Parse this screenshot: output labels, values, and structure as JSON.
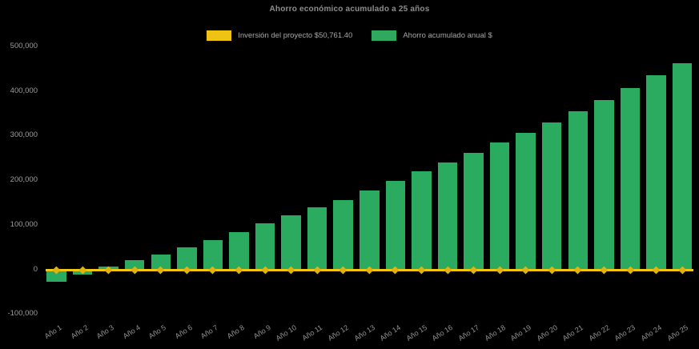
{
  "title": "Ahorro económico acumulado a 25 años",
  "colors": {
    "background": "#000000",
    "bar_green": "#2aab5f",
    "line_gold": "#f2c511",
    "marker_gold": "#e2b30e",
    "title_text": "#8d8d8d",
    "tick_text": "#9e9e9e",
    "legend_text": "#a6a6a6"
  },
  "legend": {
    "items": [
      {
        "label": "Inversión del proyecto $50,761.40",
        "color": "#eec313",
        "series": "investment-line"
      },
      {
        "label": "Ahorro acumulado anual $",
        "color": "#2fa95d",
        "series": "savings-bars"
      }
    ]
  },
  "chart_data": {
    "type": "bar",
    "title": "Ahorro económico acumulado a 25 años",
    "categories": [
      "Año 1",
      "Año 2",
      "Año 3",
      "Año 4",
      "Año 5",
      "Año 6",
      "Año 7",
      "Año 8",
      "Año 9",
      "Año 10",
      "Año 11",
      "Año 12",
      "Año 13",
      "Año 14",
      "Año 15",
      "Año 16",
      "Año 17",
      "Año 18",
      "Año 19",
      "Año 20",
      "Año 21",
      "Año 22",
      "Año 23",
      "Año 24",
      "Año 25"
    ],
    "series": [
      {
        "name": "Ahorro acumulado anual $",
        "type": "bar",
        "color": "#2aab5f",
        "values": [
          -27000,
          -11000,
          6000,
          20000,
          34000,
          50000,
          66000,
          84000,
          103000,
          121000,
          139000,
          156000,
          176000,
          198000,
          220000,
          239000,
          261000,
          284000,
          307000,
          330000,
          355000,
          380000,
          407000,
          435000,
          462000
        ]
      },
      {
        "name": "Inversión del proyecto $50,761.40",
        "type": "line",
        "color": "#f2c511",
        "marker": "diamond",
        "values": [
          -2500,
          -2500,
          -2500,
          -2500,
          -2500,
          -2500,
          -2500,
          -2500,
          -2500,
          -2500,
          -2500,
          -2500,
          -2500,
          -2500,
          -2500,
          -2500,
          -2500,
          -2500,
          -2500,
          -2500,
          -2500,
          -2500,
          -2500,
          -2500,
          -2500
        ]
      }
    ],
    "xlabel": "",
    "ylabel": "",
    "ylim": [
      -100000,
      500000
    ],
    "yticks": [
      {
        "value": -100000,
        "label": "-100,000"
      },
      {
        "value": 0,
        "label": "0"
      },
      {
        "value": 100000,
        "label": "100,000"
      },
      {
        "value": 200000,
        "label": "200,000"
      },
      {
        "value": 300000,
        "label": "300,000"
      },
      {
        "value": 400000,
        "label": "400,000"
      },
      {
        "value": 500000,
        "label": "500,000"
      }
    ],
    "grid": false,
    "legend_position": "top",
    "x_tick_rotation_deg": 33,
    "background": "#000000"
  }
}
